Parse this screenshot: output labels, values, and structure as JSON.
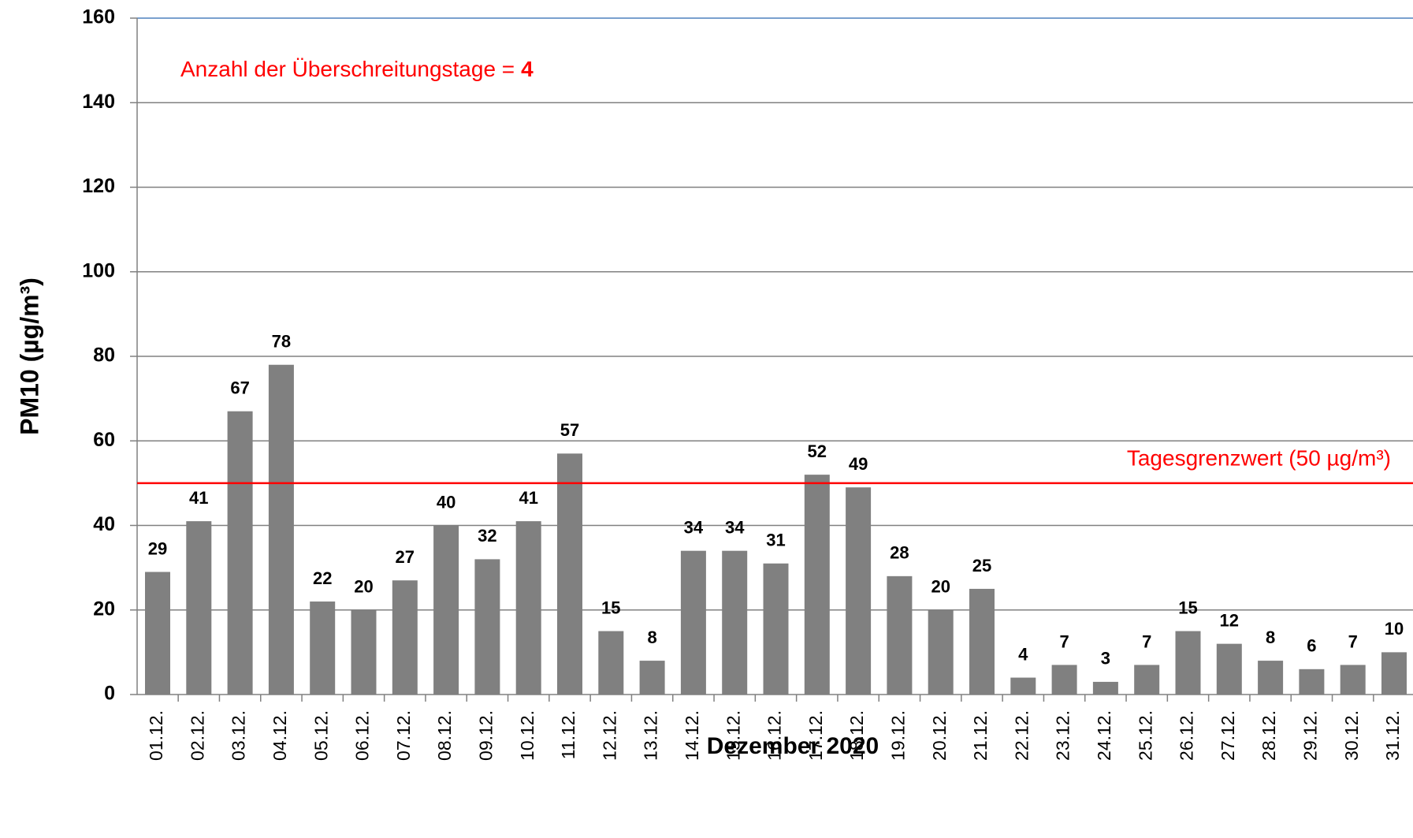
{
  "chart_data": {
    "type": "bar",
    "categories": [
      "01.12.",
      "02.12.",
      "03.12.",
      "04.12.",
      "05.12.",
      "06.12.",
      "07.12.",
      "08.12.",
      "09.12.",
      "10.12.",
      "11.12.",
      "12.12.",
      "13.12.",
      "14.12.",
      "15.12.",
      "16.12.",
      "17.12.",
      "18.12.",
      "19.12.",
      "20.12.",
      "21.12.",
      "22.12.",
      "23.12.",
      "24.12.",
      "25.12.",
      "26.12.",
      "27.12.",
      "28.12.",
      "29.12.",
      "30.12.",
      "31.12."
    ],
    "values": [
      29,
      41,
      67,
      78,
      22,
      20,
      27,
      40,
      32,
      41,
      57,
      15,
      8,
      34,
      34,
      31,
      52,
      49,
      28,
      20,
      25,
      4,
      7,
      3,
      7,
      15,
      12,
      8,
      6,
      7,
      10
    ],
    "color": "#808080",
    "ylim": [
      0,
      160
    ],
    "yticks": [
      0,
      20,
      40,
      60,
      80,
      100,
      120,
      140,
      160
    ],
    "grid": true,
    "y_label": "PM10 (µg/m³)",
    "x_label": "Dezember 2020",
    "limit": {
      "value": 50,
      "label": "Tagesgrenzwert (50 µg/m³)",
      "color": "#ff0000"
    },
    "annotation": {
      "text": "Anzahl der Überschreitungstage =",
      "count": 4
    }
  }
}
